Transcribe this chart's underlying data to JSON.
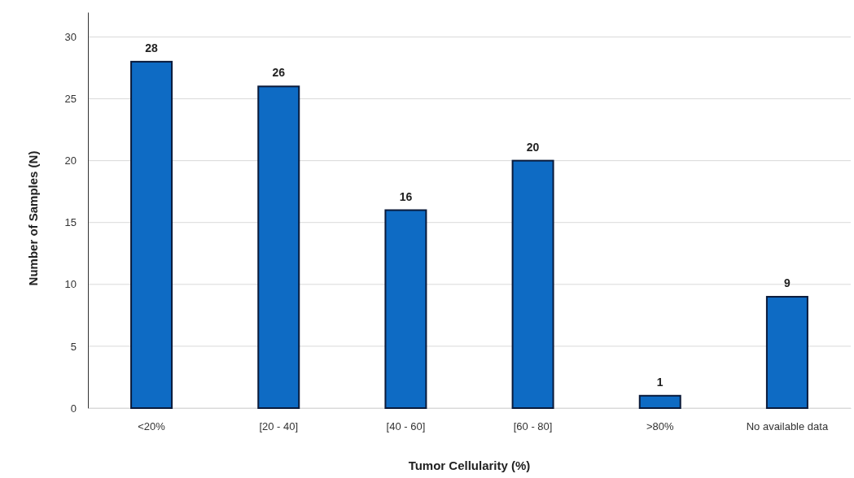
{
  "chart_data": {
    "type": "bar",
    "xlabel": "Tumor Cellularity (%)",
    "ylabel": "Number of Samples (N)",
    "categories": [
      "<20%",
      "[20 - 40]",
      "[40 - 60]",
      "[60 - 80]",
      ">80%",
      "No available data"
    ],
    "values": [
      28,
      26,
      16,
      20,
      1,
      9
    ],
    "color": "#0e6bc4",
    "ylim": [
      0,
      32
    ],
    "yticks": [
      0,
      5,
      10,
      15,
      20,
      25,
      30
    ],
    "grid": "y",
    "data_labels": true
  }
}
